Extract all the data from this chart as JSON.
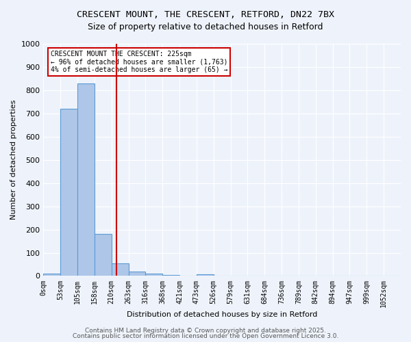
{
  "title_line1": "CRESCENT MOUNT, THE CRESCENT, RETFORD, DN22 7BX",
  "title_line2": "Size of property relative to detached houses in Retford",
  "xlabel": "Distribution of detached houses by size in Retford",
  "ylabel": "Number of detached properties",
  "bin_labels": [
    "0sqm",
    "53sqm",
    "105sqm",
    "158sqm",
    "210sqm",
    "263sqm",
    "316sqm",
    "368sqm",
    "421sqm",
    "473sqm",
    "526sqm",
    "579sqm",
    "631sqm",
    "684sqm",
    "736sqm",
    "789sqm",
    "842sqm",
    "894sqm",
    "947sqm",
    "999sqm",
    "1052sqm"
  ],
  "bar_values": [
    10,
    720,
    830,
    180,
    55,
    20,
    10,
    5,
    2,
    8,
    0,
    0,
    0,
    0,
    0,
    0,
    0,
    0,
    0,
    0,
    0
  ],
  "bar_color": "#aec6e8",
  "bar_edge_color": "#5b9bd5",
  "property_line_x": 4.28,
  "property_line_color": "#cc0000",
  "annotation_text": "CRESCENT MOUNT THE CRESCENT: 225sqm\n← 96% of detached houses are smaller (1,763)\n4% of semi-detached houses are larger (65) →",
  "annotation_box_color": "#cc0000",
  "ylim": [
    0,
    1000
  ],
  "yticks": [
    0,
    100,
    200,
    300,
    400,
    500,
    600,
    700,
    800,
    900,
    1000
  ],
  "footer_line1": "Contains HM Land Registry data © Crown copyright and database right 2025.",
  "footer_line2": "Contains public sector information licensed under the Open Government Licence 3.0.",
  "bg_color": "#eef3fb",
  "grid_color": "#ffffff"
}
